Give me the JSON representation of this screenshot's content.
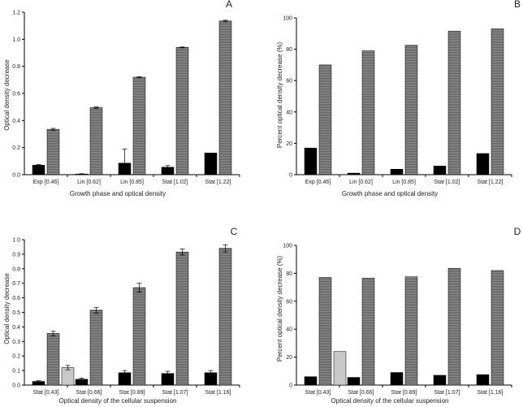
{
  "colors": {
    "bar_black": "#000000",
    "bar_grey_stripe": "#7a7a7a",
    "bar_light": "#c8c8c8",
    "axis": "#000000"
  },
  "chart_data": [
    {
      "panel": "A",
      "type": "bar",
      "xlabel": "Growth phase and optical density",
      "ylabel": "Optical density decrease",
      "categories": [
        "Exp [0.46]",
        "Lin [0.62]",
        "Lin [0.85]",
        "Stat [1.02]",
        "Stat [1.22]"
      ],
      "ylim": [
        0,
        1.2
      ],
      "yticks": [
        "0.0",
        "0.2",
        "0.4",
        "0.6",
        "0.8",
        "1.0",
        "1.2"
      ],
      "series": [
        {
          "fill": "black",
          "values": [
            0.07,
            0.005,
            0.085,
            0.055,
            0.16
          ],
          "errors": [
            0.005,
            0.002,
            0.105,
            0.012,
            0.0
          ]
        },
        {
          "fill": "grey",
          "values": [
            0.335,
            0.495,
            0.72,
            0.94,
            1.135
          ],
          "errors": [
            0.007,
            0.005,
            0.003,
            0.003,
            0.006
          ]
        }
      ]
    },
    {
      "panel": "B",
      "type": "bar",
      "xlabel": "Growth phase and optical density",
      "ylabel": "Percent optical density decrease (%)",
      "categories": [
        "Exp [0.46]",
        "Lin [0.62]",
        "Lin [0.85]",
        "Stat [1.02]",
        "Stat [1.22]"
      ],
      "ylim": [
        0,
        100
      ],
      "yticks": [
        "0",
        "20",
        "40",
        "60",
        "80",
        "100"
      ],
      "series": [
        {
          "fill": "black",
          "values": [
            17,
            1,
            3.5,
            5.5,
            13.5
          ]
        },
        {
          "fill": "grey",
          "values": [
            70,
            79,
            82.5,
            91.5,
            93
          ]
        }
      ]
    },
    {
      "panel": "C",
      "type": "bar",
      "xlabel": "Optical density of the cellular suspension",
      "ylabel": "Optical density decrease",
      "categories": [
        "Stat [0.43]",
        "Stat [0.66]",
        "Stat [0.89]",
        "Stat [1.07]",
        "Stat [1.16]"
      ],
      "ylim": [
        0,
        1.0
      ],
      "yticks": [
        "0.0",
        "0.1",
        "0.2",
        "0.3",
        "0.4",
        "0.5",
        "0.6",
        "0.7",
        "0.8",
        "0.9",
        "1.0"
      ],
      "series": [
        {
          "fill": "black",
          "values": [
            0.025,
            0.04,
            0.085,
            0.08,
            0.085
          ],
          "errors": [
            0.005,
            0.008,
            0.015,
            0.015,
            0.015
          ]
        },
        {
          "fill": "grey",
          "values": [
            0.355,
            0.515,
            0.67,
            0.915,
            0.94
          ],
          "errors": [
            0.015,
            0.02,
            0.03,
            0.02,
            0.025
          ]
        },
        {
          "fill": "light",
          "values": [
            0.12,
            null,
            null,
            null,
            null
          ],
          "errors": [
            0.015,
            null,
            null,
            null,
            null
          ]
        }
      ]
    },
    {
      "panel": "D",
      "type": "bar",
      "xlabel": "Optical density of the cellular suspension",
      "ylabel": "Percent optical density decrease (%)",
      "categories": [
        "Stat [0.43]",
        "Stat [0.66]",
        "Stat [0.89]",
        "Stat [1.07]",
        "Stat [1.16]"
      ],
      "ylim": [
        0,
        100
      ],
      "yticks": [
        "0",
        "20",
        "40",
        "60",
        "80",
        "100"
      ],
      "series": [
        {
          "fill": "black",
          "values": [
            6,
            5.5,
            9,
            7,
            7.5
          ]
        },
        {
          "fill": "grey",
          "values": [
            77,
            76.5,
            77.5,
            83.5,
            82
          ]
        },
        {
          "fill": "light",
          "values": [
            24,
            null,
            null,
            null,
            null
          ]
        }
      ]
    }
  ]
}
